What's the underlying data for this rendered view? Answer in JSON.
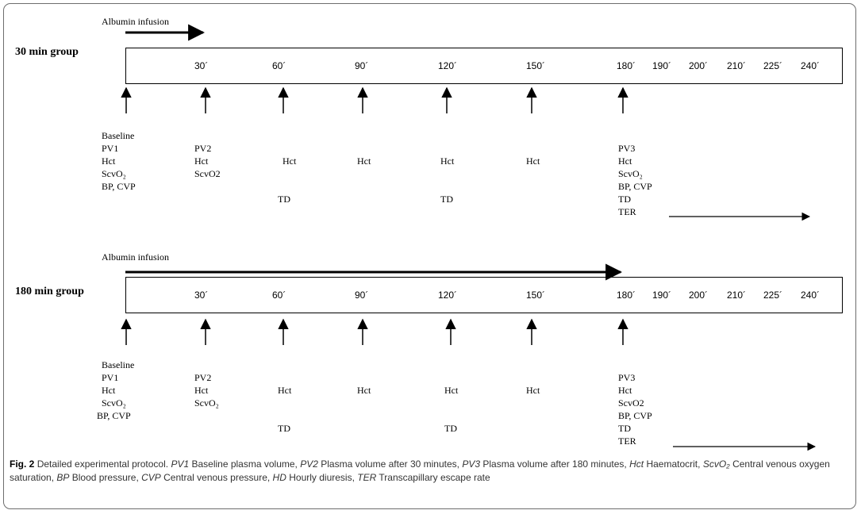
{
  "group_30": {
    "title": "30 min group",
    "infusion_label": "Albumin infusion",
    "ticks": [
      "30´",
      "60´",
      "90´",
      "120´",
      "150´",
      "180´",
      "190´",
      "200´",
      "210´",
      "225´",
      "240´"
    ],
    "col_baseline": [
      "Baseline",
      "PV1",
      "Hct",
      "ScvO₂",
      "BP, CVP"
    ],
    "col_30": [
      "PV2",
      "Hct",
      "ScvO2"
    ],
    "col_60": [
      "Hct",
      "TD"
    ],
    "col_90": [
      "Hct"
    ],
    "col_120": [
      "Hct",
      "TD"
    ],
    "col_150": [
      "Hct"
    ],
    "col_180": [
      "PV3",
      "Hct",
      "ScvO₂",
      "BP, CVP",
      "TD",
      "TER"
    ]
  },
  "group_180": {
    "title": "180 min group",
    "infusion_label": "Albumin infusion",
    "ticks": [
      "30´",
      "60´",
      "90´",
      "120´",
      "150´",
      "180´",
      "190´",
      "200´",
      "210´",
      "225´",
      "240´"
    ],
    "col_baseline": [
      "Baseline",
      "PV1",
      "Hct",
      "ScvO₂",
      "BP, CVP"
    ],
    "col_30": [
      "PV2",
      "Hct",
      "ScvO₂"
    ],
    "col_60": [
      "Hct",
      "TD"
    ],
    "col_90": [
      "Hct"
    ],
    "col_120": [
      "Hct",
      "TD"
    ],
    "col_150": [
      "Hct"
    ],
    "col_180": [
      "PV3",
      "Hct",
      "ScvO2",
      "BP, CVP",
      "TD",
      "TER"
    ]
  },
  "caption": {
    "fig_label": "Fig. 2",
    "title": "Detailed experimental protocol.",
    "abbr": [
      {
        "term": "PV1",
        "def": "Baseline plasma volume"
      },
      {
        "term": "PV2",
        "def": "Plasma volume after 30 minutes"
      },
      {
        "term": "PV3",
        "def": "Plasma volume after 180 minutes"
      },
      {
        "term": "Hct",
        "def": "Haematocrit"
      },
      {
        "term": "ScvO₂",
        "def": "Central venous oxygen saturation"
      },
      {
        "term": "BP",
        "def": "Blood pressure"
      },
      {
        "term": "CVP",
        "def": "Central venous pressure"
      },
      {
        "term": "HD",
        "def": "Hourly diuresis"
      },
      {
        "term": "TER",
        "def": "Transcapillary escape rate"
      }
    ]
  }
}
